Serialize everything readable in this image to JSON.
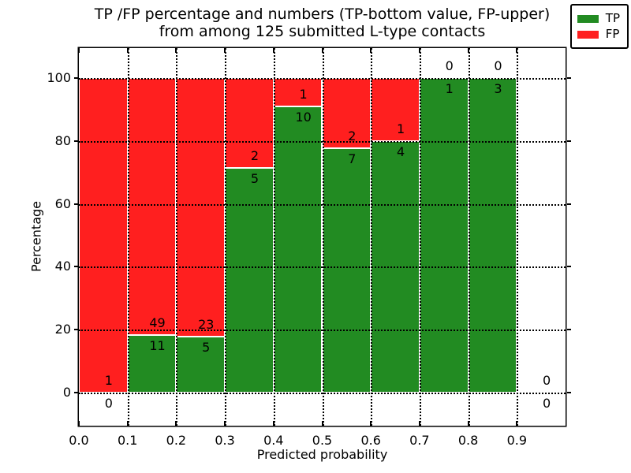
{
  "title": {
    "line1": "TP /FP percentage and numbers (TP-bottom value, FP-upper)",
    "line2": "from among 125 submitted L-type contacts"
  },
  "axes": {
    "ylabel": "Percentage",
    "xlabel": "Predicted probability",
    "yticks": [
      {
        "value": 0,
        "label": "0"
      },
      {
        "value": 20,
        "label": "20"
      },
      {
        "value": 40,
        "label": "40"
      },
      {
        "value": 60,
        "label": "60"
      },
      {
        "value": 80,
        "label": "80"
      },
      {
        "value": 100,
        "label": "100"
      }
    ],
    "xticks": [
      {
        "value": 0.0,
        "label": "0.0"
      },
      {
        "value": 0.1,
        "label": "0.1"
      },
      {
        "value": 0.2,
        "label": "0.2"
      },
      {
        "value": 0.3,
        "label": "0.3"
      },
      {
        "value": 0.4,
        "label": "0.4"
      },
      {
        "value": 0.5,
        "label": "0.5"
      },
      {
        "value": 0.6,
        "label": "0.6"
      },
      {
        "value": 0.7,
        "label": "0.7"
      },
      {
        "value": 0.8,
        "label": "0.8"
      },
      {
        "value": 0.9,
        "label": "0.9"
      }
    ]
  },
  "colors": {
    "tp": "#228b22",
    "fp": "#ff1f1f",
    "grid": "#000000"
  },
  "legend": {
    "position": "upper right",
    "items": [
      {
        "label": "TP",
        "color_key": "tp"
      },
      {
        "label": "FP",
        "color_key": "fp"
      }
    ]
  },
  "chart_data": {
    "type": "bar",
    "stacked": true,
    "normalized_to_percent": true,
    "title": "TP /FP percentage and numbers (TP-bottom value, FP-upper) from among 125 submitted L-type contacts",
    "xlabel": "Predicted probability",
    "ylabel": "Percentage",
    "xlim": [
      0.0,
      1.0
    ],
    "ylim": [
      -10.5,
      109.5
    ],
    "grid": true,
    "grid_style": "dotted",
    "bin_width": 0.1,
    "total_contacts": 125,
    "bins": [
      {
        "x0": 0.0,
        "x1": 0.1,
        "tp": 0,
        "fp": 1
      },
      {
        "x0": 0.1,
        "x1": 0.2,
        "tp": 11,
        "fp": 49
      },
      {
        "x0": 0.2,
        "x1": 0.3,
        "tp": 5,
        "fp": 23
      },
      {
        "x0": 0.3,
        "x1": 0.4,
        "tp": 5,
        "fp": 2
      },
      {
        "x0": 0.4,
        "x1": 0.5,
        "tp": 10,
        "fp": 1
      },
      {
        "x0": 0.5,
        "x1": 0.6,
        "tp": 7,
        "fp": 2
      },
      {
        "x0": 0.6,
        "x1": 0.7,
        "tp": 4,
        "fp": 1
      },
      {
        "x0": 0.7,
        "x1": 0.8,
        "tp": 1,
        "fp": 0
      },
      {
        "x0": 0.8,
        "x1": 0.9,
        "tp": 3,
        "fp": 0
      },
      {
        "x0": 0.9,
        "x1": 1.0,
        "tp": 0,
        "fp": 0
      }
    ],
    "series": [
      {
        "name": "TP",
        "values": [
          0,
          11,
          5,
          5,
          10,
          7,
          4,
          1,
          3,
          0
        ]
      },
      {
        "name": "FP",
        "values": [
          1,
          49,
          23,
          2,
          1,
          2,
          1,
          0,
          0,
          0
        ]
      }
    ]
  }
}
